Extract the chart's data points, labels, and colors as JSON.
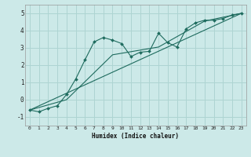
{
  "xlabel": "Humidex (Indice chaleur)",
  "bg_color": "#cce9e8",
  "grid_color": "#aed4d2",
  "line_color": "#1e6b5e",
  "xlim": [
    -0.5,
    23.5
  ],
  "ylim": [
    -1.5,
    5.5
  ],
  "yticks": [
    -1,
    0,
    1,
    2,
    3,
    4,
    5
  ],
  "xticks": [
    0,
    1,
    2,
    3,
    4,
    5,
    6,
    7,
    8,
    9,
    10,
    11,
    12,
    13,
    14,
    15,
    16,
    17,
    18,
    19,
    20,
    21,
    22,
    23
  ],
  "series1_x": [
    0,
    1,
    2,
    3,
    4,
    5,
    6,
    7,
    8,
    9,
    10,
    11,
    12,
    13,
    14,
    15,
    16,
    17,
    18,
    19,
    20,
    21,
    22,
    23
  ],
  "series1_y": [
    -0.6,
    -0.7,
    -0.5,
    -0.35,
    0.3,
    1.2,
    2.3,
    3.35,
    3.6,
    3.45,
    3.25,
    2.5,
    2.75,
    2.8,
    3.85,
    3.3,
    3.05,
    4.1,
    4.45,
    4.6,
    4.6,
    4.7,
    4.9,
    5.0
  ],
  "series2_x": [
    0,
    23
  ],
  "series2_y": [
    -0.6,
    5.0
  ],
  "series3_x": [
    0,
    4,
    9,
    14,
    19,
    23
  ],
  "series3_y": [
    -0.6,
    0.0,
    2.6,
    3.05,
    4.55,
    5.0
  ]
}
